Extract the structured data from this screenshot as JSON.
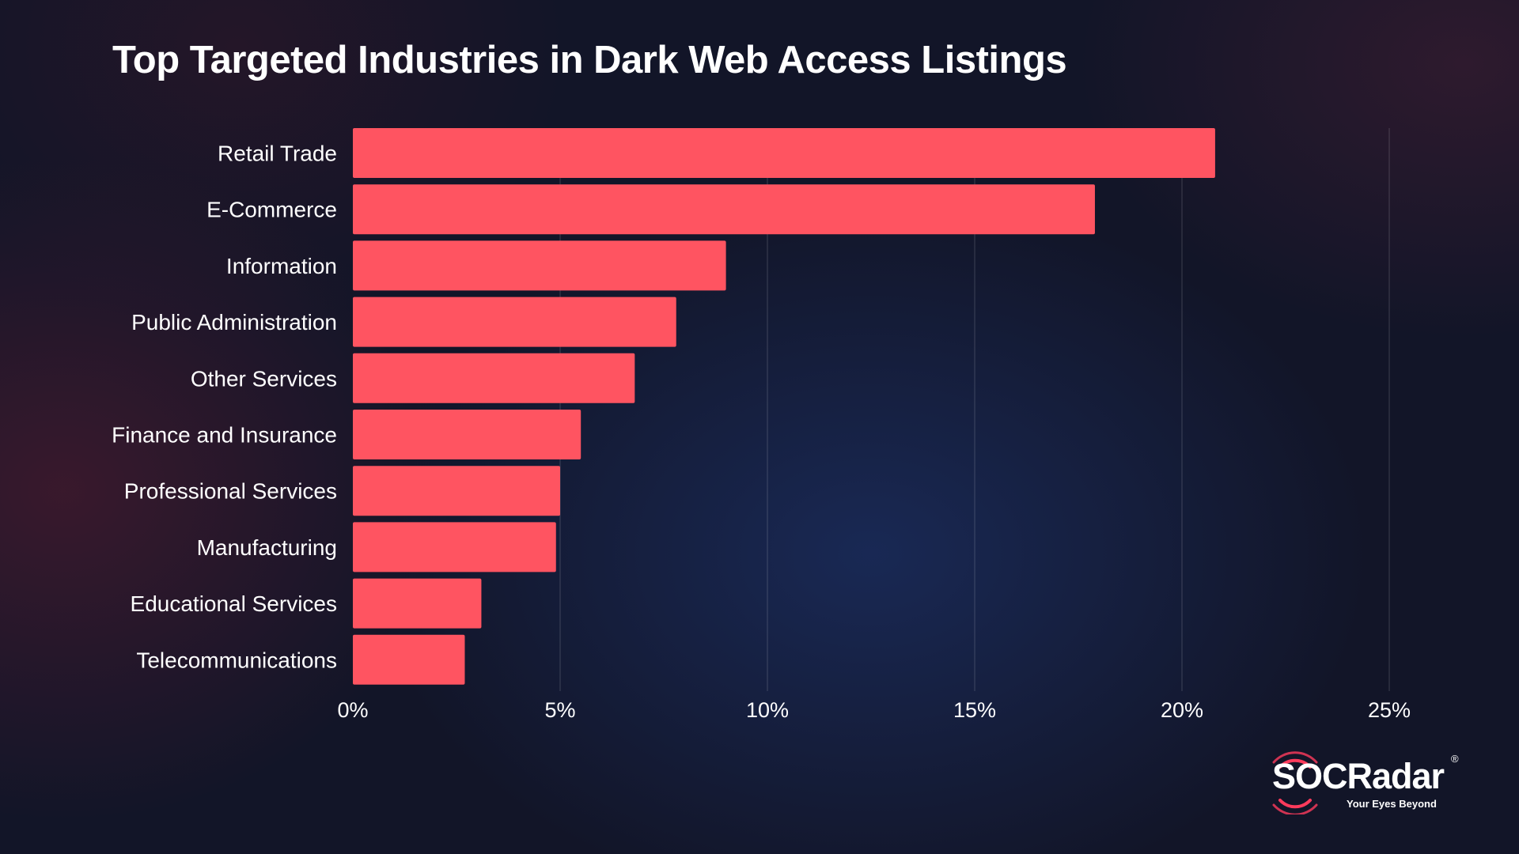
{
  "chart_data": {
    "type": "bar",
    "orientation": "horizontal",
    "title": "Top Targeted Industries in Dark Web Access Listings",
    "categories": [
      "Retail Trade",
      "E-Commerce",
      "Information",
      "Public Administration",
      "Other Services",
      "Finance and Insurance",
      "Professional Services",
      "Manufacturing",
      "Educational Services",
      "Telecommunications"
    ],
    "values": [
      20.8,
      17.9,
      9.0,
      7.8,
      6.8,
      5.5,
      5.0,
      4.9,
      3.1,
      2.7
    ],
    "xlim": [
      0,
      25
    ],
    "xticks": [
      0,
      5,
      10,
      15,
      20,
      25
    ],
    "xtick_labels": [
      "0%",
      "5%",
      "10%",
      "15%",
      "20%",
      "25%"
    ],
    "xlabel": "",
    "ylabel": "",
    "grid": "vertical",
    "legend": "none",
    "bar_color": "#ff5461"
  },
  "brand": {
    "name": "SOCRadar",
    "registered": "®",
    "tagline": "Your Eyes Beyond",
    "accent": "#ff3b5c"
  }
}
